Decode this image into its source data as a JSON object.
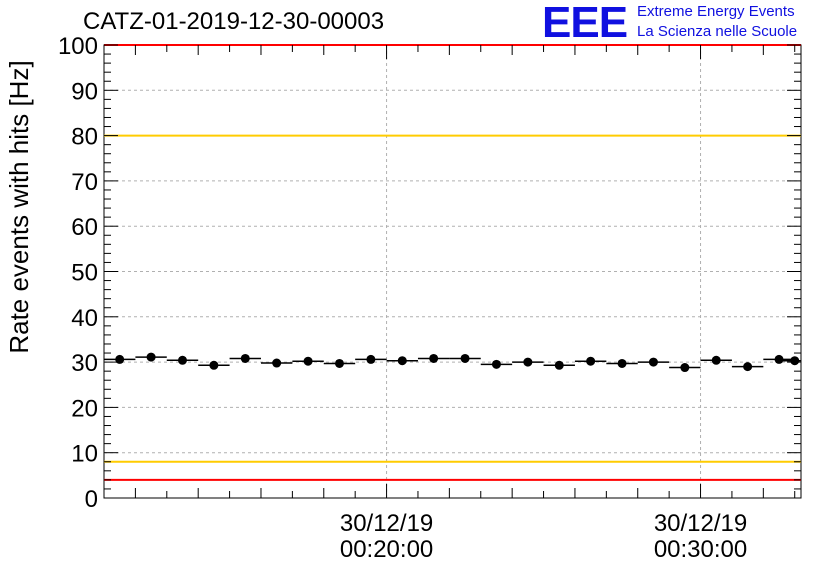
{
  "header": {
    "title": "CATZ-01-2019-12-30-00003",
    "logo_mark": "EEE",
    "logo_line1": "Extreme Energy Events",
    "logo_line2": "La Scienza nelle Scuole"
  },
  "colors": {
    "limit_red": "#ff0000",
    "limit_yellow": "#ffcc00",
    "marker": "#000000",
    "grid": "#b0b0b0",
    "logo": "#1010e0"
  },
  "chart_data": {
    "type": "scatter",
    "title": "CATZ-01-2019-12-30-00003",
    "ylabel": "Rate events with hits [Hz]",
    "xlabel": "",
    "ylim": [
      0,
      100
    ],
    "yticks": [
      "0",
      "10",
      "20",
      "30",
      "40",
      "50",
      "60",
      "70",
      "80",
      "90",
      "100"
    ],
    "xlim_minutes": [
      11.0,
      33.2
    ],
    "xticks": [
      {
        "minute": 20,
        "label_date": "30/12/19",
        "label_time": "00:20:00"
      },
      {
        "minute": 30,
        "label_date": "30/12/19",
        "label_time": "00:30:00"
      }
    ],
    "bin_width_minutes": 1.0,
    "series": [
      {
        "name": "rate",
        "x_minutes": [
          11.5,
          12.5,
          13.5,
          14.5,
          15.5,
          16.5,
          17.5,
          18.5,
          19.5,
          20.5,
          21.5,
          22.5,
          23.5,
          24.5,
          25.5,
          26.5,
          27.5,
          28.5,
          29.5,
          30.5,
          31.5,
          32.5,
          33.0
        ],
        "values": [
          30.6,
          31.1,
          30.4,
          29.3,
          30.8,
          29.8,
          30.2,
          29.7,
          30.6,
          30.3,
          30.8,
          30.8,
          29.5,
          30.0,
          29.3,
          30.2,
          29.7,
          30.0,
          28.8,
          30.4,
          29.0,
          30.6,
          30.3
        ]
      }
    ],
    "horizontal_lines": [
      {
        "value": 100,
        "color": "#ff0000"
      },
      {
        "value": 80,
        "color": "#ffcc00"
      },
      {
        "value": 8,
        "color": "#ffcc00"
      },
      {
        "value": 4,
        "color": "#ff0000"
      }
    ],
    "grid": true
  }
}
